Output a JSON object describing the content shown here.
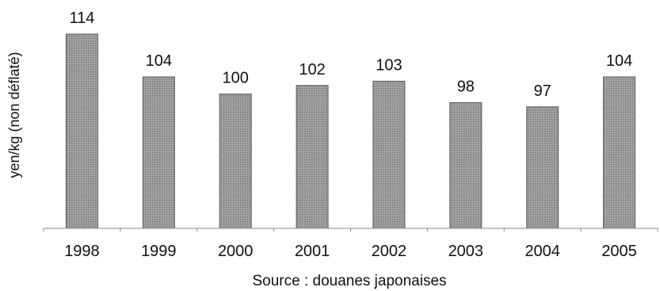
{
  "chart_data": {
    "type": "bar",
    "categories": [
      "1998",
      "1999",
      "2000",
      "2001",
      "2002",
      "2003",
      "2004",
      "2005"
    ],
    "values": [
      114,
      104,
      100,
      102,
      103,
      98,
      97,
      104
    ],
    "data_labels": [
      "114",
      "104",
      "100",
      "102",
      "103",
      "98",
      "97",
      "104"
    ],
    "title": "",
    "xlabel": "Source : douanes japonaises",
    "ylabel": "yen/kg (non déflaté)",
    "ylim": [
      70,
      115
    ],
    "grid": false,
    "legend": "none",
    "bar_color": "#8c8c8c"
  }
}
